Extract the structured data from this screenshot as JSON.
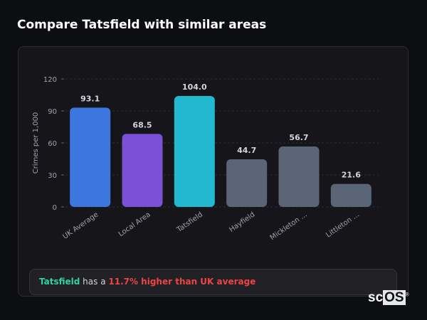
{
  "header": {
    "title": "Compare Tatsfield with similar areas"
  },
  "chart_data": {
    "type": "bar",
    "categories": [
      "UK Average",
      "Local Area",
      "Tatsfield",
      "Hayfield",
      "Mickleton ...",
      "Littleton ..."
    ],
    "values": [
      93.1,
      68.5,
      104.0,
      44.7,
      56.7,
      21.6
    ],
    "value_labels": [
      "93.1",
      "68.5",
      "104.0",
      "44.7",
      "56.7",
      "21.6"
    ],
    "colors": [
      "#3b77dd",
      "#7b4fd6",
      "#22b8cf",
      "#5a6678",
      "#5a6678",
      "#5a6678"
    ],
    "ylabel": "Crimes per 1,000",
    "ylim": [
      0,
      120
    ],
    "yticks": [
      0,
      30,
      60,
      90,
      120
    ],
    "grid": true
  },
  "footer": {
    "area": "Tatsfield",
    "middle": " has a ",
    "comparison": "11.7% higher than UK average",
    "area_color": "#2dd4a0",
    "comparison_color": "#ef4444"
  },
  "logo": {
    "text_a": "sc",
    "text_b": "OS",
    "mark": "®"
  }
}
